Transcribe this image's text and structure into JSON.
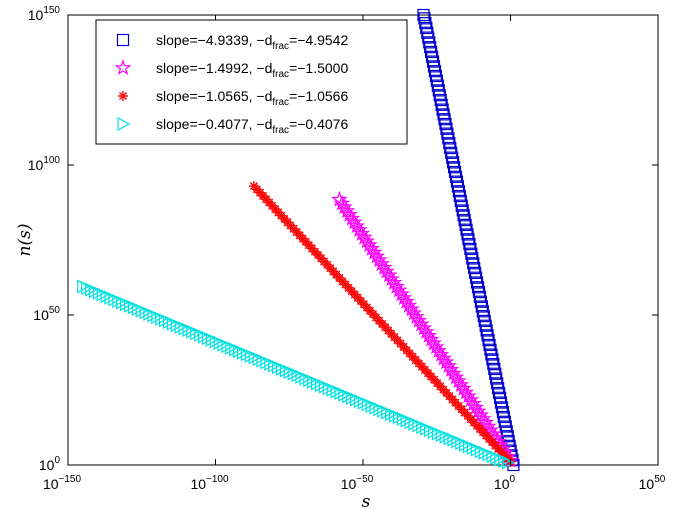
{
  "chart_data": {
    "type": "scatter",
    "title": "",
    "xlabel": "s",
    "ylabel": "n(s)",
    "xscale": "log",
    "yscale": "log",
    "xlim_exp": [
      -150,
      50
    ],
    "ylim_exp": [
      0,
      150
    ],
    "x_ticks": [
      {
        "base": "10",
        "exp": "−150"
      },
      {
        "base": "10",
        "exp": "−100"
      },
      {
        "base": "10",
        "exp": "−50"
      },
      {
        "base": "10",
        "exp": "0"
      },
      {
        "base": "10",
        "exp": "50"
      }
    ],
    "y_ticks": [
      {
        "base": "10",
        "exp": "0"
      },
      {
        "base": "10",
        "exp": "50"
      },
      {
        "base": "10",
        "exp": "100"
      },
      {
        "base": "10",
        "exp": "150"
      }
    ],
    "grid": false,
    "legend_position": "top-left",
    "series": [
      {
        "name": "slope=−4.9339, −d_frac=−4.9542",
        "legend_parts": [
          "slope=−4.9339, −d",
          "frac",
          "=−4.9542"
        ],
        "marker": "square",
        "color": "#0000cc",
        "slope": -4.9339,
        "x_exp_range": [
          -29.5,
          1
        ],
        "points": 95
      },
      {
        "name": "slope=−1.4992, −d_frac=−1.5000",
        "legend_parts": [
          "slope=−1.4992, −d",
          "frac",
          "=−1.5000"
        ],
        "marker": "star",
        "color": "#ff00ff",
        "slope": -1.4992,
        "x_exp_range": [
          -58,
          0
        ],
        "points": 70
      },
      {
        "name": "slope=−1.0565, −d_frac=−1.0566",
        "legend_parts": [
          "slope=−1.0565, −d",
          "frac",
          "=−1.0566"
        ],
        "marker": "asterisk",
        "color": "#ff0000",
        "slope": -1.0565,
        "x_exp_range": [
          -87,
          0
        ],
        "points": 85
      },
      {
        "name": "slope=−0.4077, −d_frac=−0.4076",
        "legend_parts": [
          "slope=−0.4077, −d",
          "frac",
          "=−0.4076"
        ],
        "marker": "triangle-right",
        "color": "#00e0e0",
        "slope": -0.4077,
        "x_exp_range": [
          -145,
          -1
        ],
        "points": 110
      }
    ]
  }
}
